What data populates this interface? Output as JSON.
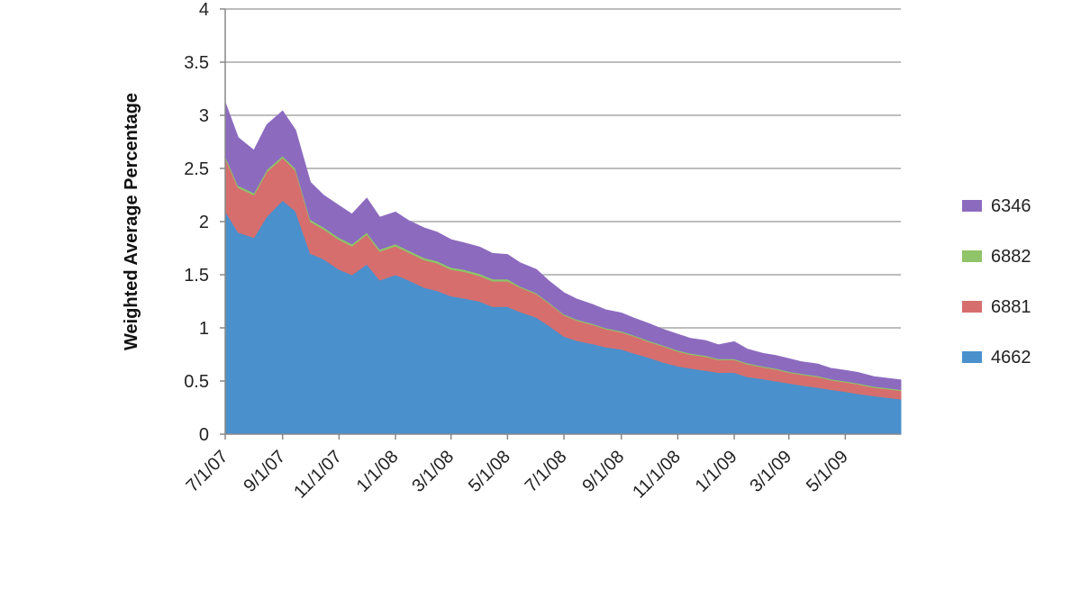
{
  "chart_data": {
    "type": "area",
    "stacked": true,
    "title": "",
    "xlabel": "",
    "ylabel": "Weighted Average Percentage",
    "ylim": [
      0,
      4
    ],
    "yticks": [
      "0",
      "0.5",
      "1",
      "1.5",
      "2",
      "2.5",
      "3",
      "3.5",
      "4"
    ],
    "xlim": [
      "2007-07-01",
      "2009-06-30"
    ],
    "xticks": [
      {
        "date": "2007-07-01",
        "label": "7/1/07"
      },
      {
        "date": "2007-09-01",
        "label": "9/1/07"
      },
      {
        "date": "2007-11-01",
        "label": "11/1/07"
      },
      {
        "date": "2008-01-01",
        "label": "1/1/08"
      },
      {
        "date": "2008-03-01",
        "label": "3/1/08"
      },
      {
        "date": "2008-05-01",
        "label": "5/1/08"
      },
      {
        "date": "2008-07-01",
        "label": "7/1/08"
      },
      {
        "date": "2008-09-01",
        "label": "9/1/08"
      },
      {
        "date": "2008-11-01",
        "label": "11/1/08"
      },
      {
        "date": "2009-01-01",
        "label": "1/1/09"
      },
      {
        "date": "2009-03-01",
        "label": "3/1/09"
      },
      {
        "date": "2009-05-01",
        "label": "5/1/09"
      }
    ],
    "grid": true,
    "legend_position": "right",
    "legend_order": [
      "6346",
      "6882",
      "6881",
      "4662"
    ],
    "x": [
      "2007-07-01",
      "2007-07-15",
      "2007-08-01",
      "2007-08-15",
      "2007-09-01",
      "2007-09-15",
      "2007-10-01",
      "2007-10-15",
      "2007-11-01",
      "2007-11-15",
      "2007-12-01",
      "2007-12-15",
      "2008-01-01",
      "2008-01-15",
      "2008-02-01",
      "2008-02-15",
      "2008-03-01",
      "2008-03-15",
      "2008-04-01",
      "2008-04-15",
      "2008-05-01",
      "2008-05-15",
      "2008-06-01",
      "2008-06-15",
      "2008-07-01",
      "2008-07-15",
      "2008-08-01",
      "2008-08-15",
      "2008-09-01",
      "2008-09-15",
      "2008-10-01",
      "2008-10-15",
      "2008-11-01",
      "2008-11-15",
      "2008-12-01",
      "2008-12-15",
      "2009-01-01",
      "2009-01-15",
      "2009-02-01",
      "2009-02-15",
      "2009-03-01",
      "2009-03-15",
      "2009-04-01",
      "2009-04-15",
      "2009-05-01",
      "2009-05-15",
      "2009-06-01",
      "2009-06-30"
    ],
    "series": [
      {
        "name": "4662",
        "color": "#4a90cc",
        "values": [
          2.1,
          1.9,
          1.85,
          2.05,
          2.2,
          2.1,
          1.7,
          1.65,
          1.55,
          1.5,
          1.6,
          1.45,
          1.5,
          1.45,
          1.38,
          1.35,
          1.3,
          1.28,
          1.25,
          1.2,
          1.2,
          1.15,
          1.1,
          1.02,
          0.92,
          0.88,
          0.85,
          0.82,
          0.8,
          0.76,
          0.72,
          0.68,
          0.64,
          0.62,
          0.6,
          0.58,
          0.58,
          0.54,
          0.52,
          0.5,
          0.48,
          0.46,
          0.44,
          0.42,
          0.4,
          0.38,
          0.36,
          0.33
        ]
      },
      {
        "name": "6881",
        "color": "#d66e6e",
        "values": [
          0.5,
          0.42,
          0.4,
          0.42,
          0.4,
          0.38,
          0.3,
          0.28,
          0.28,
          0.27,
          0.28,
          0.27,
          0.27,
          0.26,
          0.26,
          0.26,
          0.25,
          0.25,
          0.24,
          0.24,
          0.24,
          0.23,
          0.22,
          0.21,
          0.2,
          0.19,
          0.18,
          0.17,
          0.16,
          0.16,
          0.15,
          0.15,
          0.14,
          0.13,
          0.13,
          0.12,
          0.12,
          0.12,
          0.11,
          0.11,
          0.1,
          0.1,
          0.1,
          0.09,
          0.09,
          0.09,
          0.08,
          0.08
        ]
      },
      {
        "name": "6882",
        "color": "#8fc468",
        "values": [
          0.02,
          0.02,
          0.02,
          0.02,
          0.02,
          0.02,
          0.02,
          0.02,
          0.02,
          0.02,
          0.02,
          0.02,
          0.02,
          0.02,
          0.02,
          0.02,
          0.02,
          0.02,
          0.02,
          0.02,
          0.02,
          0.01,
          0.01,
          0.01,
          0.01,
          0.01,
          0.01,
          0.01,
          0.01,
          0.01,
          0.01,
          0.01,
          0.01,
          0.01,
          0.01,
          0.01,
          0.01,
          0.01,
          0.01,
          0.01,
          0.01,
          0.01,
          0.01,
          0.01,
          0.01,
          0.01,
          0.01,
          0.01
        ]
      },
      {
        "name": "6346",
        "color": "#8c6bbf",
        "values": [
          0.5,
          0.45,
          0.4,
          0.42,
          0.42,
          0.36,
          0.35,
          0.3,
          0.3,
          0.28,
          0.32,
          0.3,
          0.3,
          0.28,
          0.28,
          0.27,
          0.26,
          0.25,
          0.25,
          0.24,
          0.23,
          0.22,
          0.22,
          0.2,
          0.2,
          0.19,
          0.18,
          0.17,
          0.17,
          0.16,
          0.16,
          0.15,
          0.15,
          0.14,
          0.14,
          0.13,
          0.16,
          0.13,
          0.12,
          0.12,
          0.12,
          0.11,
          0.11,
          0.1,
          0.1,
          0.1,
          0.09,
          0.09
        ]
      }
    ]
  }
}
